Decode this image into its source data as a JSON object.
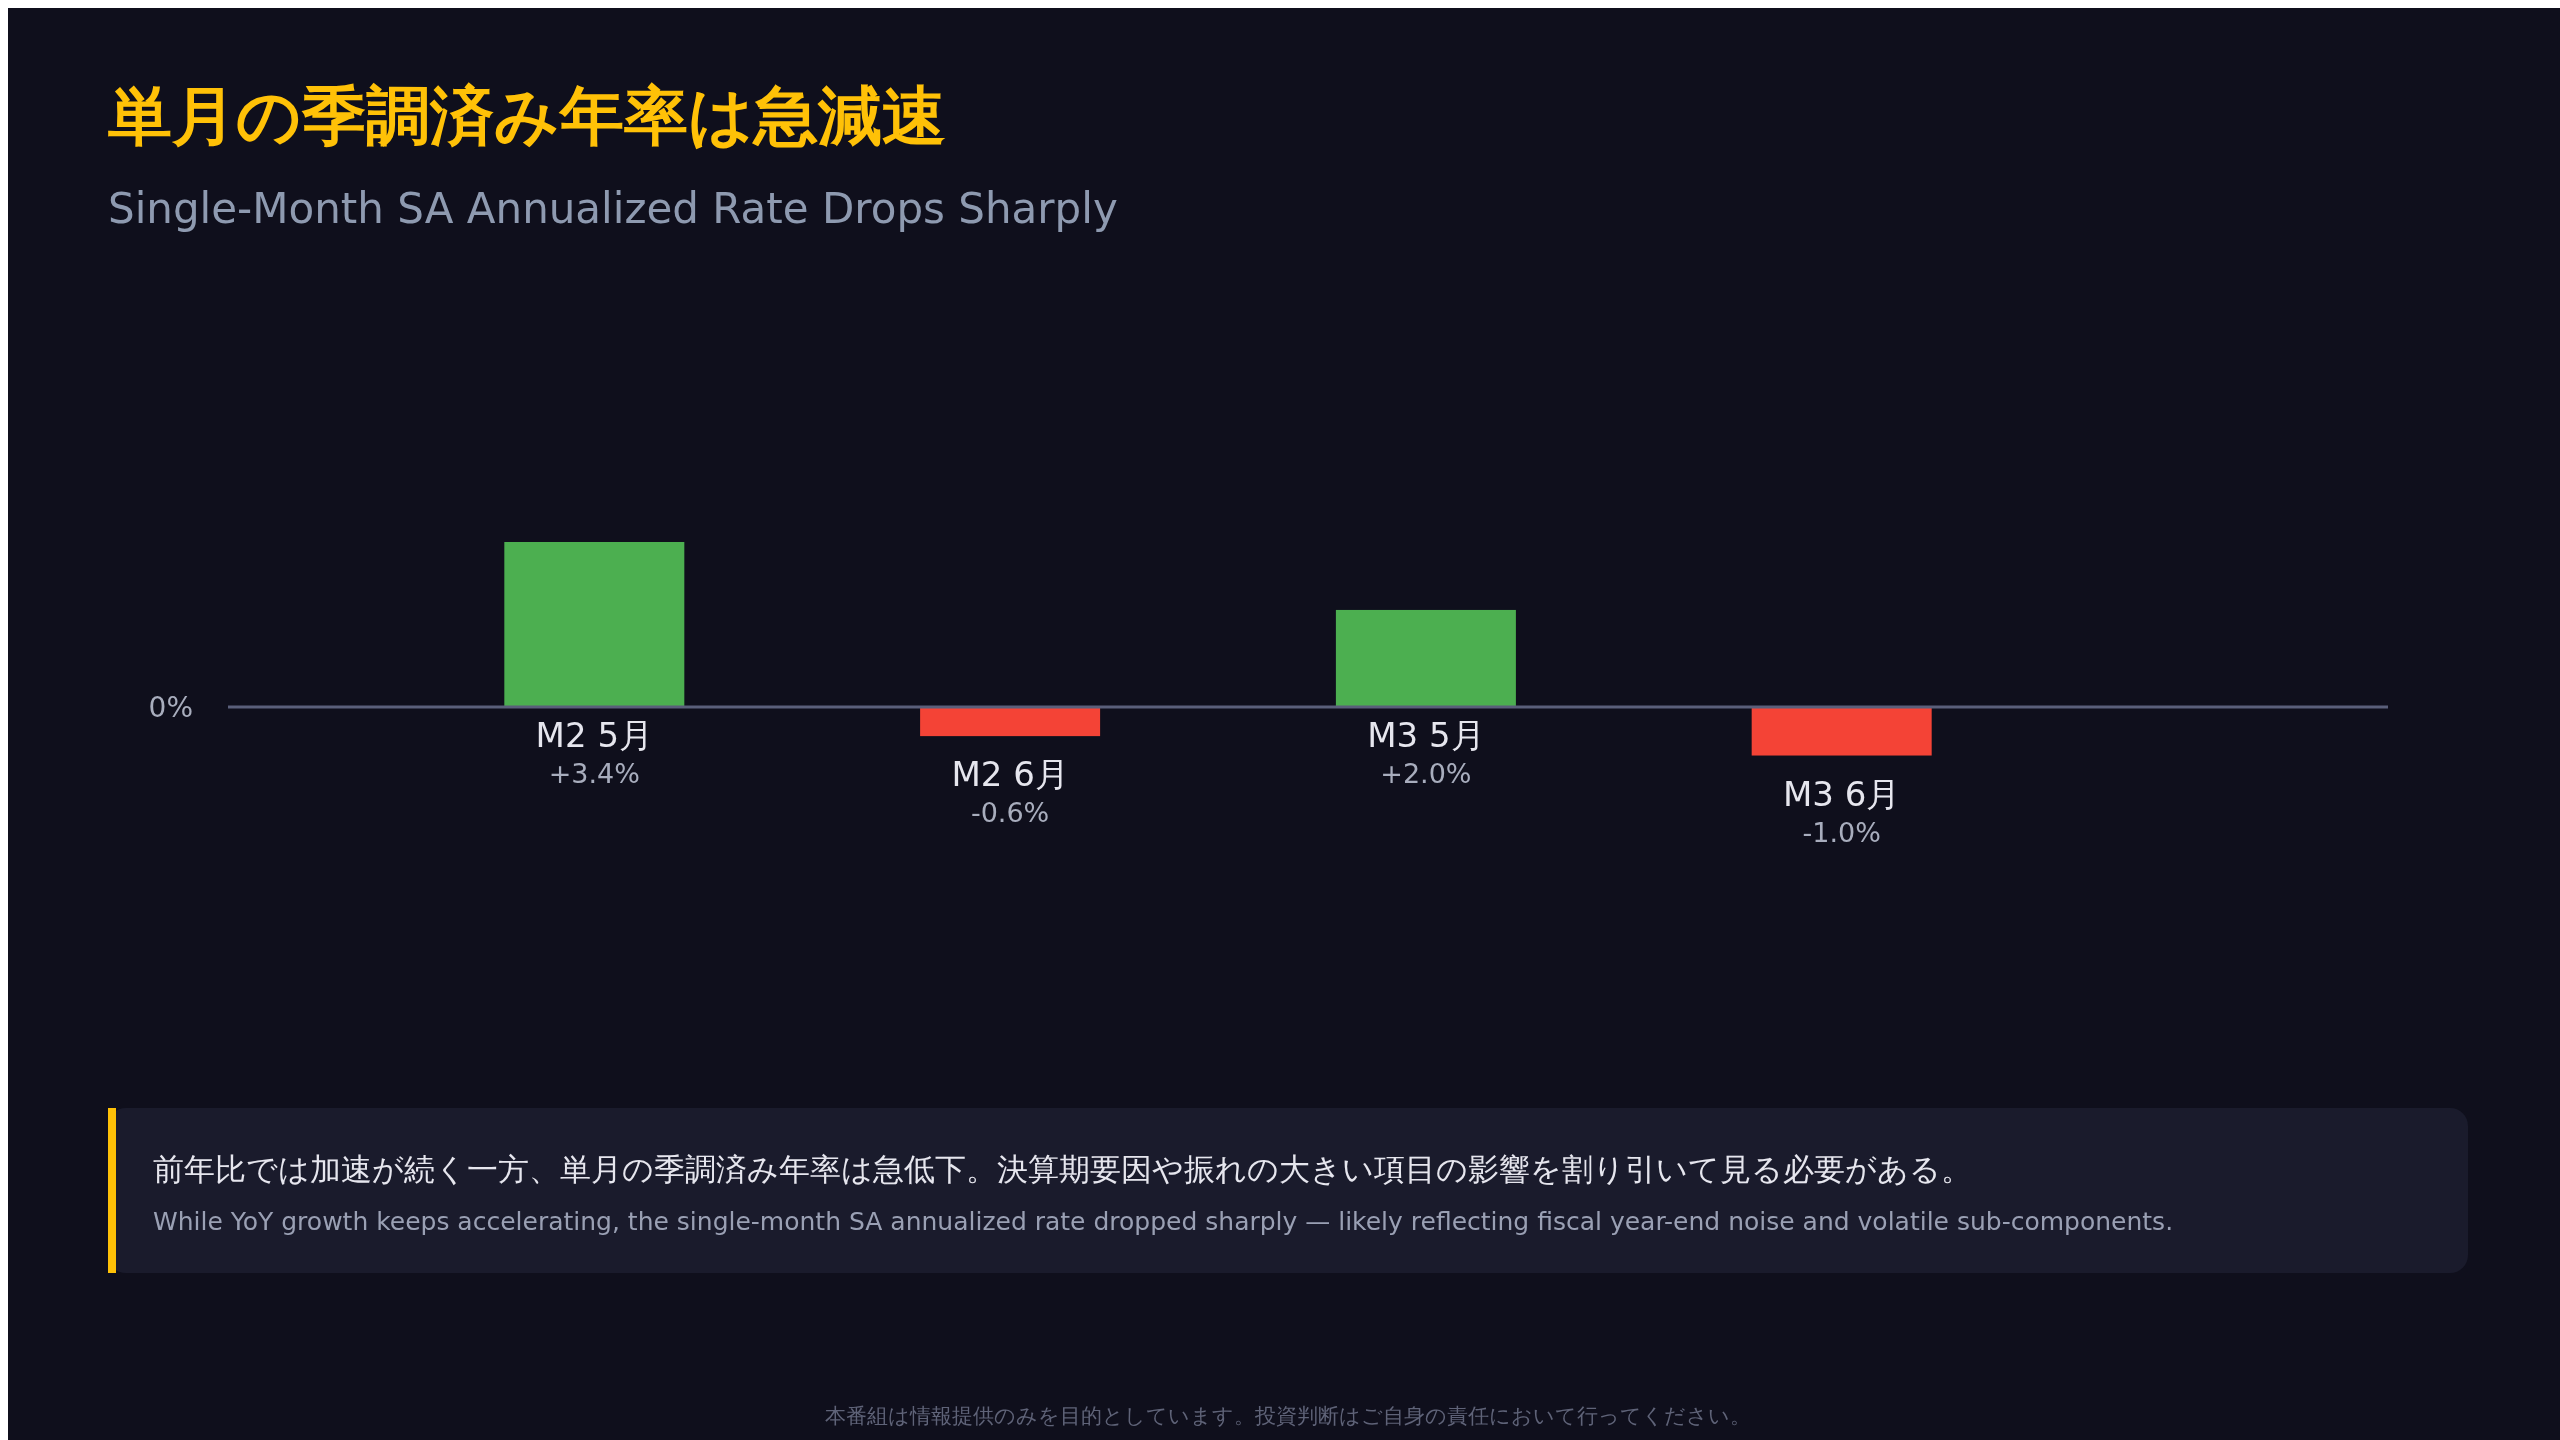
{
  "chart_data": {
    "type": "bar",
    "title": "単月の季調済み年率は急減速",
    "subtitle": "Single-Month SA Annualized Rate Drops Sharply",
    "categories": [
      "M2 5月",
      "M2 6月",
      "M3 5月",
      "M3 6月"
    ],
    "values": [
      3.4,
      -0.6,
      2.0,
      -1.0
    ],
    "colors": [
      "#4caf50",
      "#f44336",
      "#4caf50",
      "#f44336"
    ],
    "value_labels": [
      "+3.4%",
      "-0.6%",
      "+2.0%",
      "-1.0%"
    ],
    "annotations": [
      "0%",
      "前年比では加速が続く一方、単月の季調済み年率は急低下。決算期要因や振れの大きい項目の影響を割り引いて見る必要がある。",
      "While YoY growth keeps accelerating, the single-month SA annualized rate dropped sharply — likely reflecting fiscal year-end noise and volatile sub-components.",
      "本番組は情報提供のみを目的としています。投資判断はご自身の責任において行ってください。"
    ]
  }
}
